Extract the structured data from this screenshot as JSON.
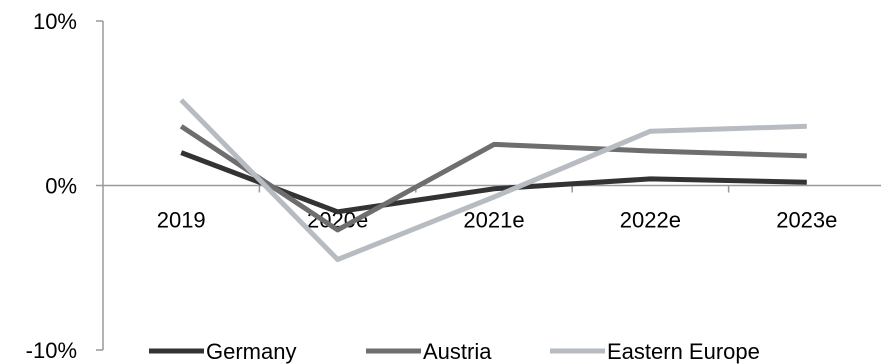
{
  "chart_data": {
    "type": "line",
    "categories": [
      "2019",
      "2020e",
      "2021e",
      "2022e",
      "2023e"
    ],
    "series": [
      {
        "name": "Germany",
        "values": [
          2.0,
          -1.6,
          -0.2,
          0.4,
          0.2
        ],
        "color": "#333333"
      },
      {
        "name": "Austria",
        "values": [
          3.6,
          -2.7,
          2.5,
          2.1,
          1.8
        ],
        "color": "#6e6e6e"
      },
      {
        "name": "Eastern Europe",
        "values": [
          5.2,
          -4.5,
          -0.7,
          3.3,
          3.6
        ],
        "color": "#b7bcc2"
      }
    ],
    "yticks": [
      "10%",
      "0%",
      "-10%"
    ],
    "ylim": [
      -10,
      10
    ],
    "legend": "bottom",
    "grid": false
  }
}
